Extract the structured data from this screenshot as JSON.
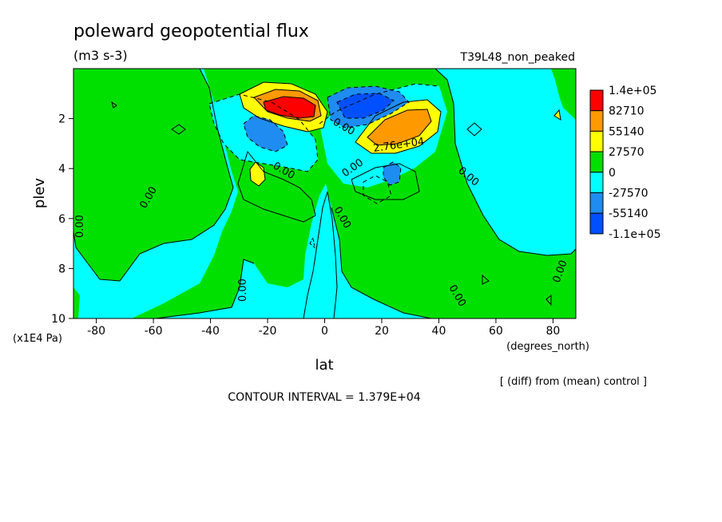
{
  "chart_data": {
    "type": "heatmap",
    "title": "poleward geopotential flux",
    "units": "(m3 s-3)",
    "experiment": "T39L48_non_peaked",
    "xlabel": "lat",
    "xunits": "(degrees_north)",
    "ylabel": "plev",
    "yunits": "(x1E4 Pa)",
    "xlim": [
      -88,
      88
    ],
    "ylim": [
      10,
      0
    ],
    "x_ticks": [
      -80,
      -60,
      -40,
      -20,
      0,
      20,
      40,
      60,
      80
    ],
    "y_ticks": [
      2,
      4,
      6,
      8,
      10
    ],
    "colorbar": {
      "levels": [
        "1.4e+05",
        "82710",
        "55140",
        "27570",
        "0",
        "-27570",
        "-55140",
        "-1.1e+05"
      ],
      "colors": [
        "#ff0000",
        "#ff9900",
        "#ffff00",
        "#00e000",
        "#00ffff",
        "#1e8cf0",
        "#0050ff"
      ]
    },
    "contour_interval": "CONTOUR INTERVAL = 1.379E+04",
    "note": "[ (diff) from (mean) control ]",
    "contour_labels": [
      "0.00",
      "2.76e+04"
    ],
    "regions": [
      {
        "sign": "positive",
        "max_level": "1.4e+05",
        "lat": -10,
        "plev": 1.8
      },
      {
        "sign": "positive",
        "max_level": "82710",
        "lat": 23,
        "plev": 2.6
      },
      {
        "sign": "negative",
        "min_level": "-1.1e+05",
        "lat": 13,
        "plev": 1.6
      },
      {
        "sign": "negative",
        "min_level": "-55140",
        "lat": -22,
        "plev": 2.5
      },
      {
        "sign": "positive",
        "max_level": "55140",
        "lat": -25,
        "plev": 4.2
      },
      {
        "sign": "negative",
        "min_level": "-55140",
        "lat": 25,
        "plev": 4.1
      }
    ]
  }
}
